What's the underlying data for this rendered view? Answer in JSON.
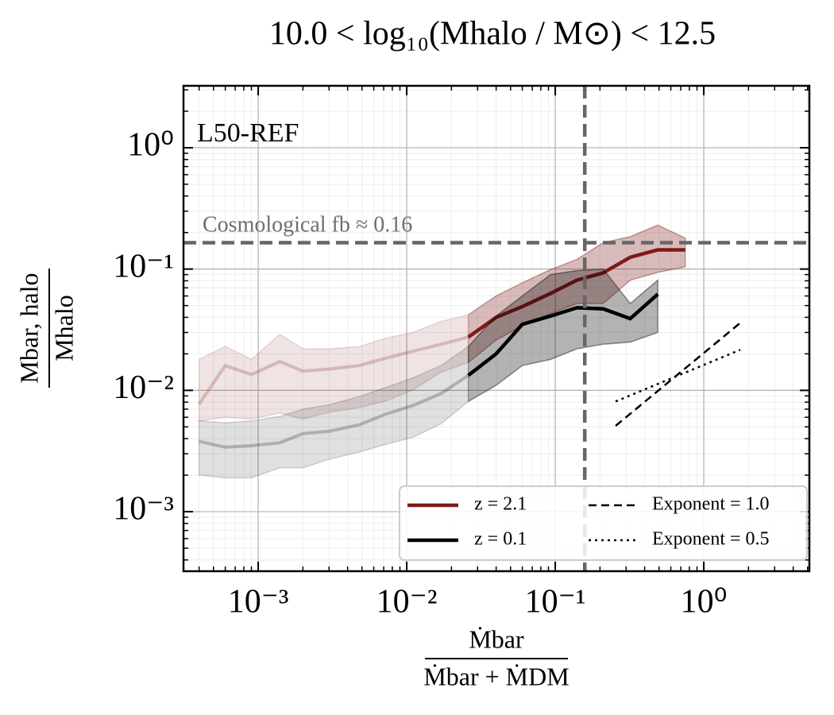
{
  "chart_data": {
    "type": "line",
    "title": "10.0 < log₁₀(Mhalo / M⊙) < 12.5",
    "x_label": {
      "numerator": "Ṁbar",
      "denominator": "Ṁbar + ṀDM"
    },
    "y_label": {
      "numerator": "Mbar, halo",
      "denominator": "Mhalo"
    },
    "xscale": "log",
    "yscale": "log",
    "xlim": [
      0.000314,
      5.14
    ],
    "ylim": [
      0.000323,
      3.24
    ],
    "xticks": [
      {
        "value": 0.001,
        "label": "10⁻³"
      },
      {
        "value": 0.01,
        "label": "10⁻²"
      },
      {
        "value": 0.1,
        "label": "10⁻¹"
      },
      {
        "value": 1,
        "label": "10⁰"
      }
    ],
    "yticks": [
      {
        "value": 0.001,
        "label": "10⁻³"
      },
      {
        "value": 0.01,
        "label": "10⁻²"
      },
      {
        "value": 0.1,
        "label": "10⁻¹"
      },
      {
        "value": 1,
        "label": "10⁰"
      }
    ],
    "grid": true,
    "minor_grid": true,
    "legend": "lower right",
    "highlight_from": 0.026,
    "series": [
      {
        "name": "z = 2.1",
        "color": "#7f1a1a",
        "x": [
          0.0004,
          0.0006,
          0.0009,
          0.0014,
          0.002,
          0.003,
          0.0048,
          0.0073,
          0.011,
          0.017,
          0.026,
          0.04,
          0.06,
          0.093,
          0.14,
          0.21,
          0.32,
          0.49,
          0.75
        ],
        "values": [
          0.0077,
          0.016,
          0.0135,
          0.0173,
          0.0144,
          0.015,
          0.016,
          0.0185,
          0.021,
          0.024,
          0.0275,
          0.04,
          0.049,
          0.063,
          0.081,
          0.093,
          0.125,
          0.144,
          0.144
        ],
        "band_high": [
          0.018,
          0.023,
          0.018,
          0.029,
          0.022,
          0.022,
          0.023,
          0.027,
          0.03,
          0.037,
          0.042,
          0.06,
          0.077,
          0.099,
          0.12,
          0.165,
          0.185,
          0.23,
          0.18
        ],
        "band_low": [
          0.0056,
          0.006,
          0.0058,
          0.0065,
          0.0058,
          0.0066,
          0.0072,
          0.0082,
          0.0101,
          0.0141,
          0.017,
          0.026,
          0.034,
          0.043,
          0.052,
          0.052,
          0.081,
          0.094,
          0.104
        ]
      },
      {
        "name": "z = 0.1",
        "color": "#000000",
        "x": [
          0.0004,
          0.0006,
          0.0009,
          0.0014,
          0.002,
          0.003,
          0.0048,
          0.0073,
          0.011,
          0.017,
          0.026,
          0.04,
          0.06,
          0.093,
          0.14,
          0.21,
          0.32,
          0.49
        ],
        "values": [
          0.0038,
          0.0034,
          0.0035,
          0.0037,
          0.0044,
          0.0046,
          0.0052,
          0.0064,
          0.0075,
          0.0094,
          0.0133,
          0.02,
          0.035,
          0.041,
          0.048,
          0.047,
          0.039,
          0.062
        ],
        "band_high": [
          0.0056,
          0.0054,
          0.0056,
          0.0061,
          0.007,
          0.0076,
          0.0089,
          0.0106,
          0.0127,
          0.016,
          0.023,
          0.041,
          0.06,
          0.09,
          0.097,
          0.1,
          0.052,
          0.081
        ],
        "band_low": [
          0.002,
          0.0019,
          0.0019,
          0.0023,
          0.0023,
          0.0027,
          0.0031,
          0.0036,
          0.0041,
          0.0053,
          0.0081,
          0.011,
          0.016,
          0.018,
          0.022,
          0.024,
          0.025,
          0.03
        ]
      },
      {
        "name": "Exponent = 1.0",
        "color": "#000000",
        "style": "dashed",
        "x": [
          0.255,
          1.76
        ],
        "values": [
          0.0051,
          0.036
        ]
      },
      {
        "name": "Exponent = 0.5",
        "color": "#000000",
        "style": "dotted",
        "x": [
          0.255,
          1.76
        ],
        "values": [
          0.0081,
          0.0216
        ]
      }
    ],
    "reference_lines": [
      {
        "orientation": "horizontal",
        "value": 0.165,
        "color": "#666666"
      },
      {
        "orientation": "vertical",
        "value": 0.158,
        "color": "#666666"
      }
    ],
    "annotations": [
      "L50-REF",
      "Cosmological fb ≈ 0.16"
    ]
  }
}
